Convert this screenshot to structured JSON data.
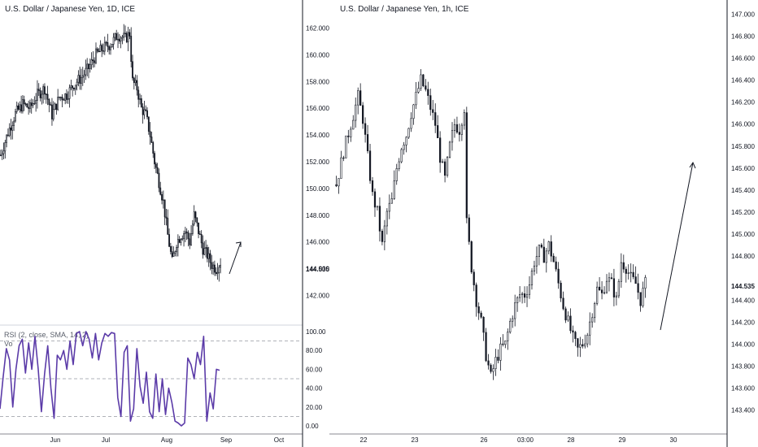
{
  "left_panel": {
    "title": "U.S. Dollar / Japanese Yen, 1D, ICE",
    "last_price": "144.535",
    "price_ticks": [
      "162.000",
      "160.000",
      "158.000",
      "156.000",
      "154.000",
      "152.000",
      "150.000",
      "148.000",
      "146.000",
      "144.000",
      "142.000"
    ],
    "month_ticks": [
      "Jun",
      "Jul",
      "Aug",
      "Sep",
      "Oct"
    ],
    "rsi": {
      "label": "RSI (2, close, SMA, 14, 2)",
      "sub_label": "Vo",
      "ticks": [
        "100.00",
        "80.00",
        "60.00",
        "40.00",
        "20.00",
        "0.00"
      ],
      "levels": [
        90,
        50,
        10
      ]
    }
  },
  "right_panel": {
    "title": "U.S. Dollar / Japanese Yen, 1h, ICE",
    "last_price": "144.535",
    "price_ticks": [
      "147.000",
      "146.800",
      "146.600",
      "146.400",
      "146.200",
      "146.000",
      "145.800",
      "145.600",
      "145.400",
      "145.200",
      "145.000",
      "144.800",
      "144.400",
      "144.200",
      "144.000",
      "143.800",
      "143.600",
      "143.400"
    ],
    "time_ticks": [
      "22",
      "23",
      "26",
      "03:00",
      "28",
      "29",
      "30"
    ]
  },
  "colors": {
    "candle": "#131722",
    "rsi_line": "#5b3ba8",
    "dashed": "#9598a1",
    "grid": "#e0e3eb"
  },
  "chart_data": [
    {
      "type": "candlestick",
      "title": "U.S. Dollar / Japanese Yen, 1D, ICE",
      "timeframe": "1D",
      "x_ticks": [
        "Jun",
        "Jul",
        "Aug",
        "Sep",
        "Oct"
      ],
      "ylim": [
        141,
        163
      ],
      "last": 144.535,
      "close_path": [
        [
          0,
          152.5
        ],
        [
          5,
          154.2
        ],
        [
          10,
          155.6
        ],
        [
          15,
          156.3
        ],
        [
          20,
          156.0
        ],
        [
          25,
          157.0
        ],
        [
          30,
          157.5
        ],
        [
          35,
          155.5
        ],
        [
          40,
          156.8
        ],
        [
          45,
          157.0
        ],
        [
          50,
          157.8
        ],
        [
          55,
          158.3
        ],
        [
          60,
          159.0
        ],
        [
          65,
          160.0
        ],
        [
          70,
          160.5
        ],
        [
          75,
          160.8
        ],
        [
          80,
          161.5
        ],
        [
          85,
          161.2
        ],
        [
          88,
          161.6
        ],
        [
          90,
          158.0
        ],
        [
          93,
          157.5
        ],
        [
          96,
          156.0
        ],
        [
          99,
          155.5
        ],
        [
          102,
          154.0
        ],
        [
          105,
          152.0
        ],
        [
          108,
          150.5
        ],
        [
          111,
          149.0
        ],
        [
          114,
          146.5
        ],
        [
          117,
          144.5
        ],
        [
          120,
          146.0
        ],
        [
          123,
          146.5
        ],
        [
          126,
          146.8
        ],
        [
          129,
          146.0
        ],
        [
          132,
          148.0
        ],
        [
          135,
          146.8
        ],
        [
          138,
          145.5
        ],
        [
          141,
          145.0
        ],
        [
          144,
          144.3
        ],
        [
          147,
          144.0
        ],
        [
          150,
          144.5
        ]
      ],
      "rsi": {
        "label": "RSI (2, close, SMA, 14, 2)",
        "levels": [
          90,
          50,
          10
        ],
        "ylim": [
          0,
          100
        ],
        "values": [
          18,
          52,
          82,
          70,
          20,
          60,
          85,
          92,
          56,
          88,
          60,
          95,
          60,
          15,
          55,
          85,
          40,
          8,
          75,
          70,
          80,
          60,
          90,
          65,
          98,
          100,
          85,
          100,
          92,
          72,
          98,
          70,
          88,
          98,
          95,
          99,
          98,
          30,
          10,
          78,
          85,
          5,
          18,
          82,
          42,
          24,
          57,
          15,
          8,
          55,
          15,
          50,
          12,
          40,
          25,
          5,
          3,
          0,
          3,
          72,
          65,
          50,
          78,
          65,
          95,
          5,
          35,
          18,
          60,
          59
        ]
      }
    },
    {
      "type": "candlestick",
      "title": "U.S. Dollar / Japanese Yen, 1h, ICE",
      "timeframe": "1h",
      "x_ticks": [
        "22",
        "23",
        "26",
        "03:00",
        "28",
        "29",
        "30"
      ],
      "ylim": [
        143.36,
        147.04
      ],
      "last": 144.535,
      "close_path": [
        [
          0,
          145.45
        ],
        [
          3,
          145.75
        ],
        [
          6,
          146.0
        ],
        [
          9,
          146.25
        ],
        [
          11,
          146.05
        ],
        [
          13,
          145.7
        ],
        [
          15,
          145.35
        ],
        [
          17,
          145.2
        ],
        [
          19,
          144.9
        ],
        [
          21,
          145.2
        ],
        [
          23,
          145.3
        ],
        [
          25,
          145.6
        ],
        [
          27,
          145.8
        ],
        [
          29,
          145.9
        ],
        [
          31,
          146.1
        ],
        [
          33,
          146.25
        ],
        [
          35,
          146.4
        ],
        [
          37,
          146.3
        ],
        [
          39,
          146.15
        ],
        [
          41,
          146.0
        ],
        [
          43,
          145.7
        ],
        [
          45,
          145.5
        ],
        [
          47,
          145.8
        ],
        [
          49,
          146.0
        ],
        [
          51,
          145.95
        ],
        [
          53,
          146.15
        ],
        [
          54,
          145.1
        ],
        [
          56,
          144.7
        ],
        [
          58,
          144.4
        ],
        [
          60,
          144.2
        ],
        [
          62,
          143.9
        ],
        [
          64,
          143.7
        ],
        [
          66,
          143.85
        ],
        [
          68,
          143.95
        ],
        [
          70,
          144.0
        ],
        [
          72,
          144.2
        ],
        [
          74,
          144.35
        ],
        [
          76,
          144.45
        ],
        [
          78,
          144.45
        ],
        [
          80,
          144.55
        ],
        [
          82,
          144.75
        ],
        [
          84,
          144.85
        ],
        [
          86,
          144.8
        ],
        [
          88,
          144.9
        ],
        [
          90,
          144.75
        ],
        [
          92,
          144.55
        ],
        [
          94,
          144.35
        ],
        [
          96,
          144.2
        ],
        [
          98,
          144.05
        ],
        [
          100,
          143.95
        ],
        [
          102,
          144.0
        ],
        [
          104,
          144.1
        ],
        [
          106,
          144.3
        ],
        [
          108,
          144.5
        ],
        [
          110,
          144.45
        ],
        [
          112,
          144.6
        ],
        [
          114,
          144.55
        ],
        [
          116,
          144.4
        ],
        [
          118,
          144.75
        ],
        [
          120,
          144.7
        ],
        [
          122,
          144.6
        ],
        [
          124,
          144.55
        ],
        [
          126,
          144.4
        ],
        [
          128,
          144.55
        ]
      ]
    }
  ]
}
